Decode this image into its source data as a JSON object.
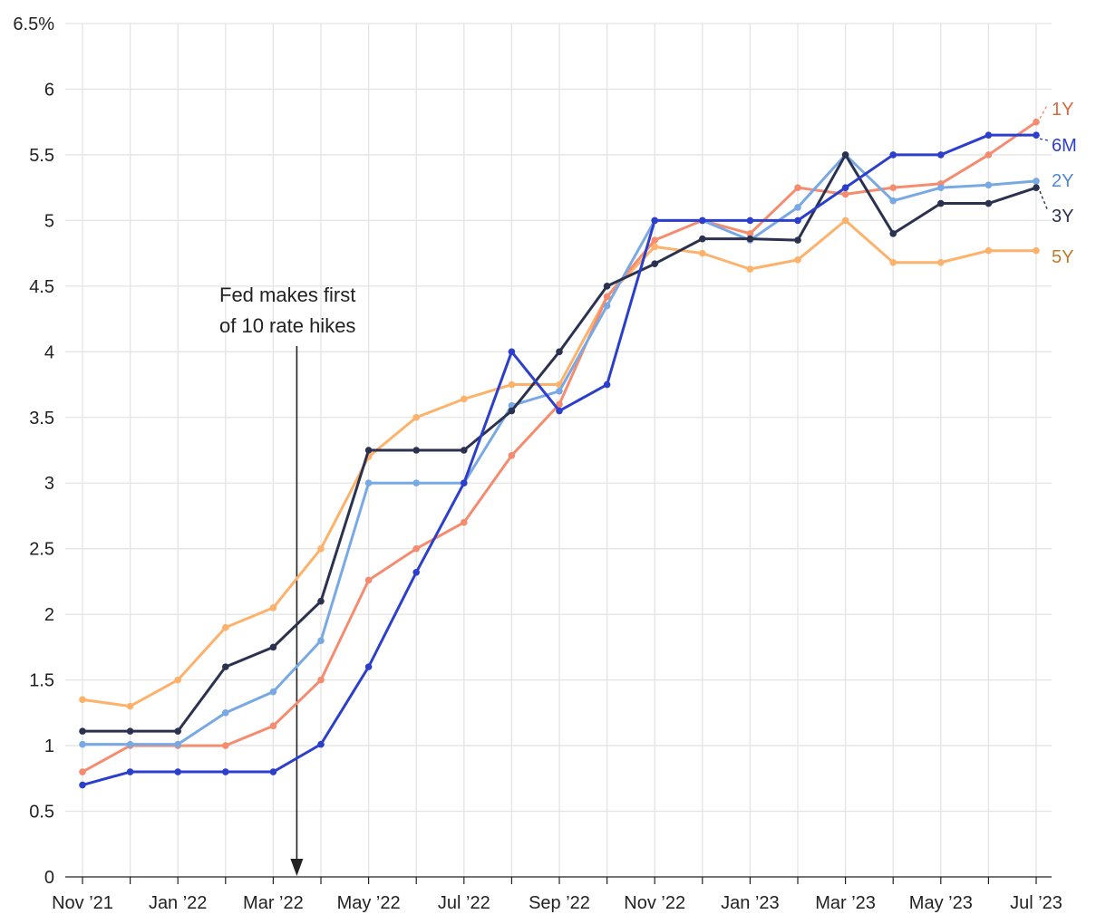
{
  "chart_data": {
    "type": "line",
    "title": "",
    "xlabel": "",
    "ylabel": "",
    "ylim": [
      0,
      6.5
    ],
    "y_ticks": [
      "0",
      "0.5",
      "1",
      "1.5",
      "2",
      "2.5",
      "3",
      "3.5",
      "4",
      "4.5",
      "5",
      "5.5",
      "6",
      "6.5%"
    ],
    "x_tick_labels": [
      "Nov ’21",
      "Jan ’22",
      "Mar ’22",
      "May ’22",
      "Jul ’22",
      "Sep ’22",
      "Nov ’22",
      "Jan ’23",
      "Mar ’23",
      "May ’23",
      "Jul ’23"
    ],
    "x": [
      "2021-11",
      "2021-12",
      "2022-01",
      "2022-02",
      "2022-03",
      "2022-04",
      "2022-05",
      "2022-06",
      "2022-07",
      "2022-08",
      "2022-09",
      "2022-10",
      "2022-11",
      "2022-12",
      "2023-01",
      "2023-02",
      "2023-03",
      "2023-04",
      "2023-05",
      "2023-06",
      "2023-07"
    ],
    "grid": true,
    "legend": "direct labels at right end of lines",
    "annotation": {
      "line1": "Fed makes first",
      "line2": "of 10 rate hikes",
      "at": "2022-03"
    },
    "series": [
      {
        "name": "5Y",
        "color": "#fdb26b",
        "label_color": "#c07a2c",
        "values": [
          1.35,
          1.3,
          1.5,
          1.9,
          2.05,
          2.5,
          3.2,
          3.5,
          3.64,
          3.75,
          3.75,
          4.42,
          4.8,
          4.75,
          4.63,
          4.7,
          5.0,
          4.68,
          4.68,
          4.77,
          4.77
        ]
      },
      {
        "name": "1Y",
        "color": "#f58c6f",
        "label_color": "#d9673f",
        "values": [
          0.8,
          1.0,
          1.0,
          1.0,
          1.15,
          1.5,
          2.26,
          2.5,
          2.7,
          3.21,
          3.6,
          4.42,
          4.85,
          5.0,
          4.9,
          5.25,
          5.2,
          5.25,
          5.28,
          5.5,
          5.75
        ]
      },
      {
        "name": "2Y",
        "color": "#79a9e4",
        "label_color": "#4f87c9",
        "values": [
          1.01,
          1.01,
          1.01,
          1.25,
          1.41,
          1.8,
          3.0,
          3.0,
          3.0,
          3.59,
          3.7,
          4.35,
          5.0,
          5.0,
          4.85,
          5.1,
          5.5,
          5.15,
          5.25,
          5.27,
          5.3
        ]
      },
      {
        "name": "3Y",
        "color": "#2b3250",
        "label_color": "#2b3250",
        "values": [
          1.11,
          1.11,
          1.11,
          1.6,
          1.75,
          2.1,
          3.25,
          3.25,
          3.25,
          3.55,
          4.0,
          4.5,
          4.67,
          4.86,
          4.86,
          4.85,
          5.5,
          4.9,
          5.13,
          5.13,
          5.25
        ]
      },
      {
        "name": "6M",
        "color": "#2c3fcc",
        "label_color": "#2c3fcc",
        "values": [
          0.7,
          0.8,
          0.8,
          0.8,
          0.8,
          1.01,
          1.6,
          2.32,
          3.0,
          4.0,
          3.55,
          3.75,
          5.0,
          5.0,
          5.0,
          5.0,
          5.25,
          5.5,
          5.5,
          5.65,
          5.65
        ]
      }
    ],
    "label_order": [
      "1Y",
      "6M",
      "2Y",
      "3Y",
      "5Y"
    ]
  }
}
